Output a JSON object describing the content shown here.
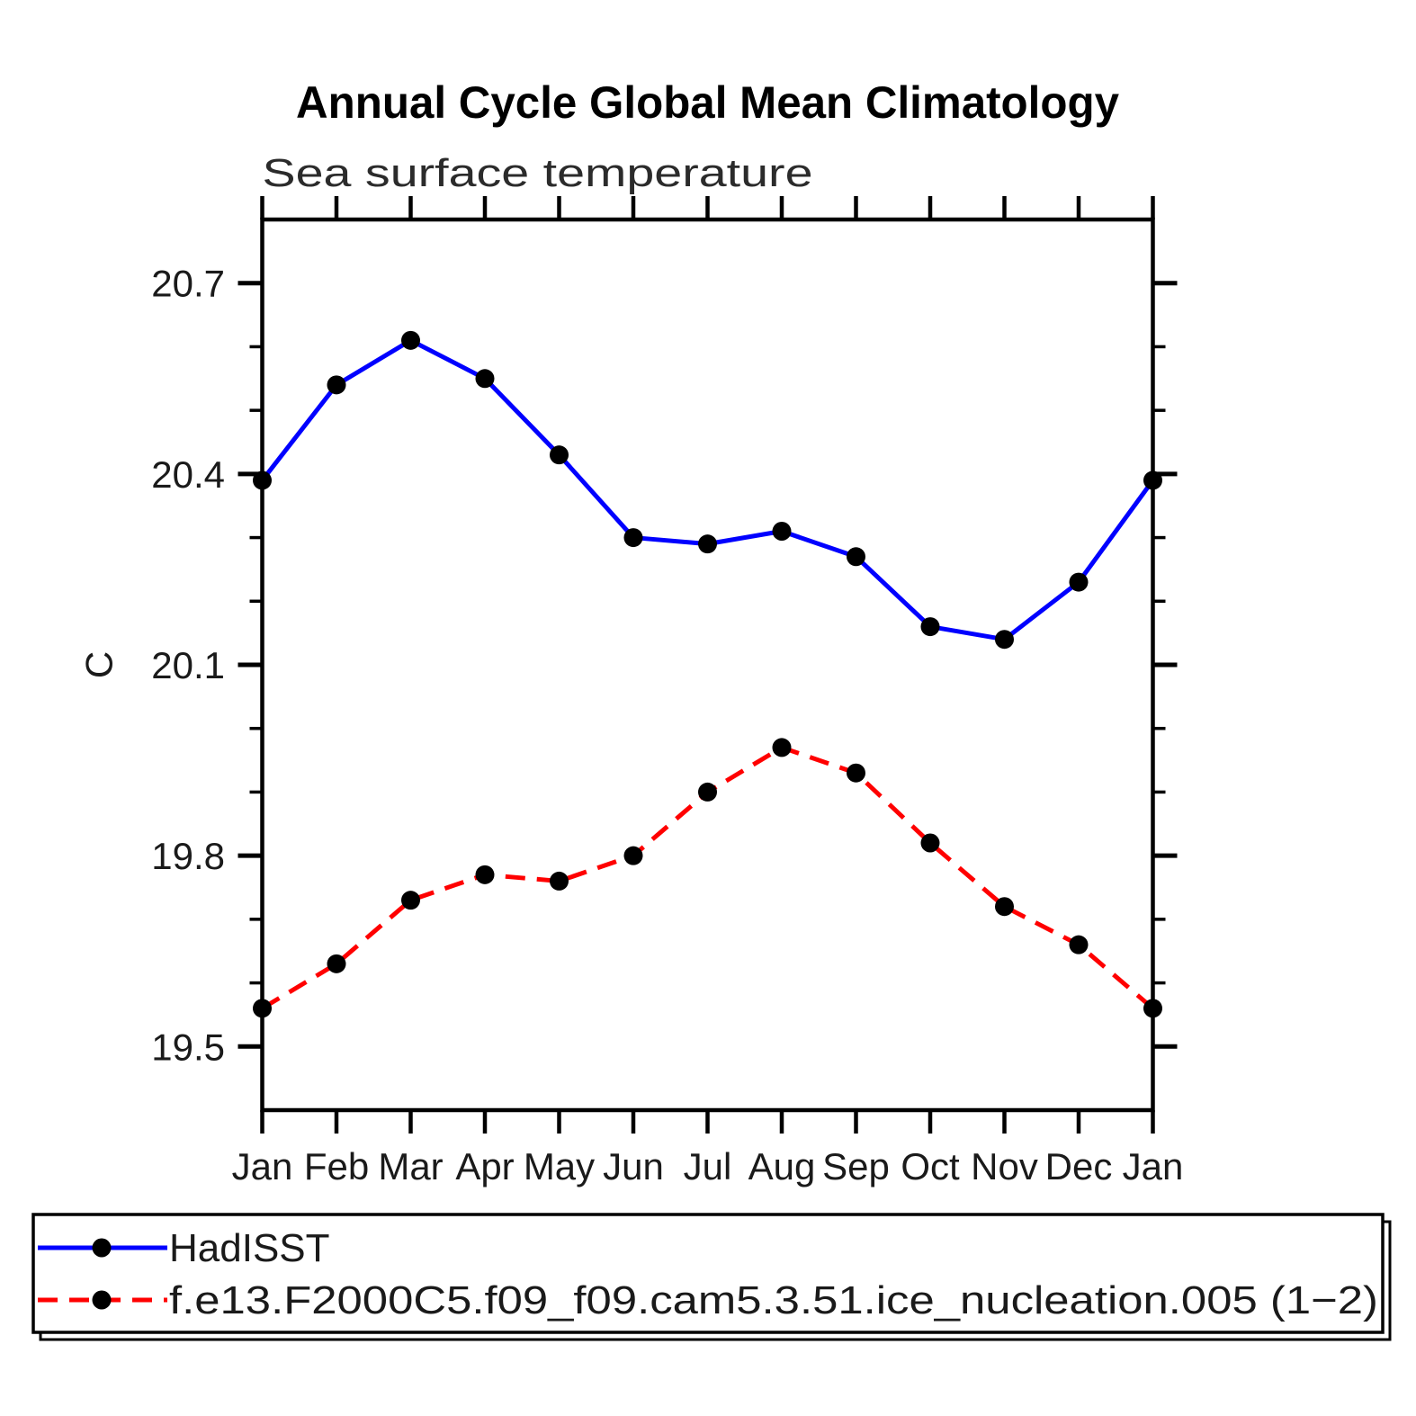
{
  "page": {
    "background_color": "#ffffff",
    "accent_colors": {
      "series1": "#0000ff",
      "series2": "#ff0000",
      "marker": "#000000",
      "axis": "#000000"
    }
  },
  "chart_data": {
    "type": "line",
    "title": "Annual Cycle Global Mean Climatology",
    "subtitle": "Sea surface temperature",
    "ylabel": "C",
    "xlabel": "",
    "categories": [
      "Jan",
      "Feb",
      "Mar",
      "Apr",
      "May",
      "Jun",
      "Jul",
      "Aug",
      "Sep",
      "Oct",
      "Nov",
      "Dec",
      "Jan"
    ],
    "ylim": [
      19.4,
      20.8
    ],
    "yticks_major": [
      19.5,
      19.8,
      20.1,
      20.4,
      20.7
    ],
    "ytick_labels": [
      "19.5",
      "19.8",
      "20.1",
      "20.4",
      "20.7"
    ],
    "ytick_minor_step": 0.1,
    "grid": false,
    "tick_direction": "outward",
    "legend_position": "bottom-left-box",
    "series": [
      {
        "name": "HadISST",
        "color": "#0000ff",
        "line_style": "solid",
        "marker": "circle",
        "marker_color": "#000000",
        "values": [
          20.39,
          20.54,
          20.61,
          20.55,
          20.43,
          20.3,
          20.29,
          20.31,
          20.27,
          20.16,
          20.14,
          20.23,
          20.39
        ]
      },
      {
        "name": "f.e13.F2000C5.f09_f09.cam5.3.51.ice_nucleation.005 (1−2)",
        "color": "#ff0000",
        "line_style": "dashed",
        "marker": "circle",
        "marker_color": "#000000",
        "values": [
          19.56,
          19.63,
          19.73,
          19.77,
          19.76,
          19.8,
          19.9,
          19.97,
          19.93,
          19.82,
          19.72,
          19.66,
          19.56
        ]
      }
    ]
  }
}
